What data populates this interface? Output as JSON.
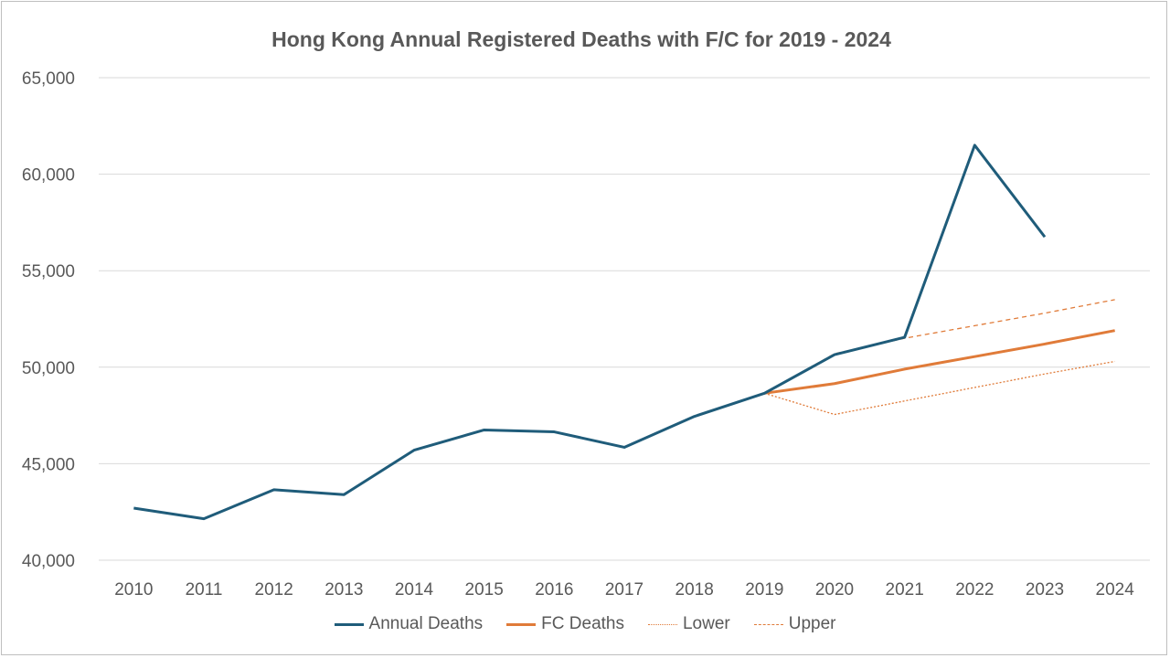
{
  "chart_data": {
    "type": "line",
    "title": "Hong Kong Annual Registered Deaths with F/C for 2019 - 2024",
    "xlabel": "",
    "ylabel": "",
    "ylim": [
      40000,
      65000
    ],
    "yticks": [
      "40,000",
      "45,000",
      "50,000",
      "55,000",
      "60,000",
      "65,000"
    ],
    "ytick_values": [
      40000,
      45000,
      50000,
      55000,
      60000,
      65000
    ],
    "categories": [
      "2010",
      "2011",
      "2012",
      "2013",
      "2014",
      "2015",
      "2016",
      "2017",
      "2018",
      "2019",
      "2020",
      "2021",
      "2022",
      "2023",
      "2024"
    ],
    "grid": true,
    "legend_position": "bottom",
    "series": [
      {
        "name": "Annual Deaths",
        "color": "#1f5c7a",
        "style": "solid",
        "values": [
          42700,
          42150,
          43650,
          43400,
          45700,
          46750,
          46650,
          45850,
          47450,
          48650,
          50650,
          51550,
          61500,
          56750,
          null
        ]
      },
      {
        "name": "FC Deaths",
        "color": "#e07b39",
        "style": "solid",
        "values": [
          null,
          null,
          null,
          null,
          null,
          null,
          null,
          null,
          null,
          48650,
          49150,
          49900,
          50550,
          51200,
          51900
        ]
      },
      {
        "name": "Lower",
        "color": "#e07b39",
        "style": "dotted",
        "values": [
          null,
          null,
          null,
          null,
          null,
          null,
          null,
          null,
          null,
          48650,
          47550,
          48250,
          48950,
          49650,
          50300
        ]
      },
      {
        "name": "Upper",
        "color": "#e07b39",
        "style": "dashed",
        "values": [
          null,
          null,
          null,
          null,
          null,
          null,
          null,
          null,
          null,
          48650,
          50700,
          51500,
          52150,
          52800,
          53500
        ]
      }
    ]
  }
}
